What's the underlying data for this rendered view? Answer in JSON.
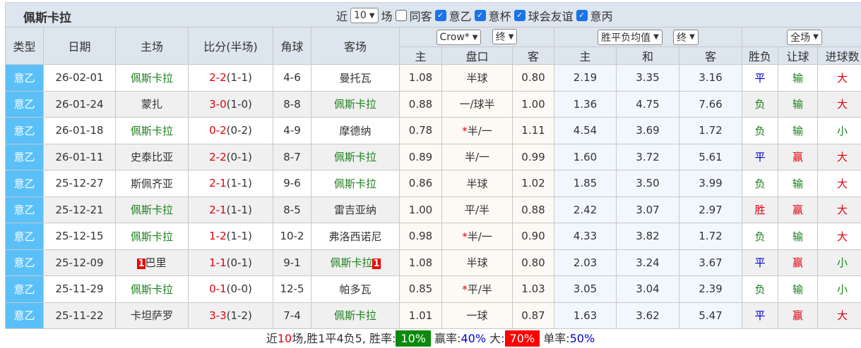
{
  "title": "佩斯卡拉",
  "filters": {
    "prefix": "近",
    "count": "10",
    "suffix": "场",
    "same_away": "同客",
    "leagues": [
      "意乙",
      "意杯",
      "球会友谊",
      "意丙"
    ]
  },
  "header": {
    "type": "类型",
    "date": "日期",
    "home": "主场",
    "score": "比分(半场)",
    "corner": "角球",
    "away": "客场",
    "ah_company": "Crow*",
    "ah_time": "终",
    "eu_type": "胜平负均值",
    "eu_time": "终",
    "range": "全场",
    "ah_home": "主",
    "ah_line": "盘口",
    "ah_away": "客",
    "eu_home": "主",
    "eu_draw": "和",
    "eu_away": "客",
    "res": "胜负",
    "handicap": "让球",
    "goals": "进球数"
  },
  "rows": [
    {
      "type": "意乙",
      "date": "26-02-01",
      "home": "佩斯卡拉",
      "home_badge": "",
      "score": "2-2",
      "half": "(1-1)",
      "corner": "4-6",
      "away": "曼托瓦",
      "away_badge": "",
      "ah_h": "1.08",
      "star": "",
      "line": "半球",
      "ah_a": "0.80",
      "eu_h": "2.19",
      "eu_d": "3.35",
      "eu_a": "3.16",
      "res": "平",
      "hc": "输",
      "goal": "大",
      "hp": true
    },
    {
      "type": "意乙",
      "date": "26-01-24",
      "home": "蒙扎",
      "home_badge": "",
      "score": "3-0",
      "half": "(1-0)",
      "corner": "8-8",
      "away": "佩斯卡拉",
      "away_badge": "",
      "ah_h": "0.88",
      "star": "",
      "line": "一/球半",
      "ah_a": "1.00",
      "eu_h": "1.36",
      "eu_d": "4.75",
      "eu_a": "7.66",
      "res": "负",
      "hc": "输",
      "goal": "大",
      "hp": false
    },
    {
      "type": "意乙",
      "date": "26-01-18",
      "home": "佩斯卡拉",
      "home_badge": "",
      "score": "0-2",
      "half": "(0-2)",
      "corner": "4-9",
      "away": "摩德纳",
      "away_badge": "",
      "ah_h": "0.78",
      "star": "*",
      "line": "半/一",
      "ah_a": "1.11",
      "eu_h": "4.54",
      "eu_d": "3.69",
      "eu_a": "1.72",
      "res": "负",
      "hc": "输",
      "goal": "小",
      "hp": true
    },
    {
      "type": "意乙",
      "date": "26-01-11",
      "home": "史泰比亚",
      "home_badge": "",
      "score": "2-2",
      "half": "(0-1)",
      "corner": "8-7",
      "away": "佩斯卡拉",
      "away_badge": "",
      "ah_h": "0.89",
      "star": "",
      "line": "半/一",
      "ah_a": "0.99",
      "eu_h": "1.60",
      "eu_d": "3.72",
      "eu_a": "5.61",
      "res": "平",
      "hc": "赢",
      "goal": "大",
      "hp": false
    },
    {
      "type": "意乙",
      "date": "25-12-27",
      "home": "斯佩齐亚",
      "home_badge": "",
      "score": "2-1",
      "half": "(1-1)",
      "corner": "9-6",
      "away": "佩斯卡拉",
      "away_badge": "",
      "ah_h": "0.86",
      "star": "",
      "line": "半球",
      "ah_a": "1.02",
      "eu_h": "1.85",
      "eu_d": "3.50",
      "eu_a": "3.99",
      "res": "负",
      "hc": "输",
      "goal": "大",
      "hp": false
    },
    {
      "type": "意乙",
      "date": "25-12-21",
      "home": "佩斯卡拉",
      "home_badge": "",
      "score": "2-1",
      "half": "(1-1)",
      "corner": "8-5",
      "away": "雷吉亚纳",
      "away_badge": "",
      "ah_h": "1.00",
      "star": "",
      "line": "平/半",
      "ah_a": "0.88",
      "eu_h": "2.42",
      "eu_d": "3.07",
      "eu_a": "2.97",
      "res": "胜",
      "hc": "赢",
      "goal": "大",
      "hp": true
    },
    {
      "type": "意乙",
      "date": "25-12-15",
      "home": "佩斯卡拉",
      "home_badge": "",
      "score": "1-2",
      "half": "(1-1)",
      "corner": "10-2",
      "away": "弗洛西诺尼",
      "away_badge": "",
      "ah_h": "0.98",
      "star": "*",
      "line": "半/一",
      "ah_a": "0.90",
      "eu_h": "4.33",
      "eu_d": "3.82",
      "eu_a": "1.72",
      "res": "负",
      "hc": "输",
      "goal": "大",
      "hp": true
    },
    {
      "type": "意乙",
      "date": "25-12-09",
      "home": "巴里",
      "home_badge": "1",
      "score": "1-1",
      "half": "(0-1)",
      "corner": "9-1",
      "away": "佩斯卡拉",
      "away_badge": "1",
      "ah_h": "1.08",
      "star": "",
      "line": "半球",
      "ah_a": "0.80",
      "eu_h": "2.03",
      "eu_d": "3.24",
      "eu_a": "3.67",
      "res": "平",
      "hc": "赢",
      "goal": "小",
      "hp": false
    },
    {
      "type": "意乙",
      "date": "25-11-29",
      "home": "佩斯卡拉",
      "home_badge": "",
      "score": "0-1",
      "half": "(0-0)",
      "corner": "12-5",
      "away": "帕多瓦",
      "away_badge": "",
      "ah_h": "0.85",
      "star": "*",
      "line": "平/半",
      "ah_a": "1.03",
      "eu_h": "3.05",
      "eu_d": "3.04",
      "eu_a": "2.39",
      "res": "负",
      "hc": "输",
      "goal": "小",
      "hp": true
    },
    {
      "type": "意乙",
      "date": "25-11-22",
      "home": "卡坦萨罗",
      "home_badge": "",
      "score": "3-3",
      "half": "(1-2)",
      "corner": "7-4",
      "away": "佩斯卡拉",
      "away_badge": "",
      "ah_h": "1.01",
      "star": "",
      "line": "一球",
      "ah_a": "0.87",
      "eu_h": "1.63",
      "eu_d": "3.62",
      "eu_a": "5.47",
      "res": "平",
      "hc": "赢",
      "goal": "大",
      "hp": false
    }
  ],
  "footer": {
    "p1": "近",
    "n": "10",
    "p2": "场,胜1平4负5, 胜率:",
    "win_rate": "10%",
    "p3": "赢率:",
    "cover_rate": "40%",
    "p4": "大:",
    "over_rate": "70%",
    "p5": "单率:",
    "odd_rate": "50%"
  },
  "colors": {
    "type_bg": "#5bc0f8",
    "win": "#e0000f",
    "draw": "#0000cc",
    "loss": "#1a7f1a"
  }
}
